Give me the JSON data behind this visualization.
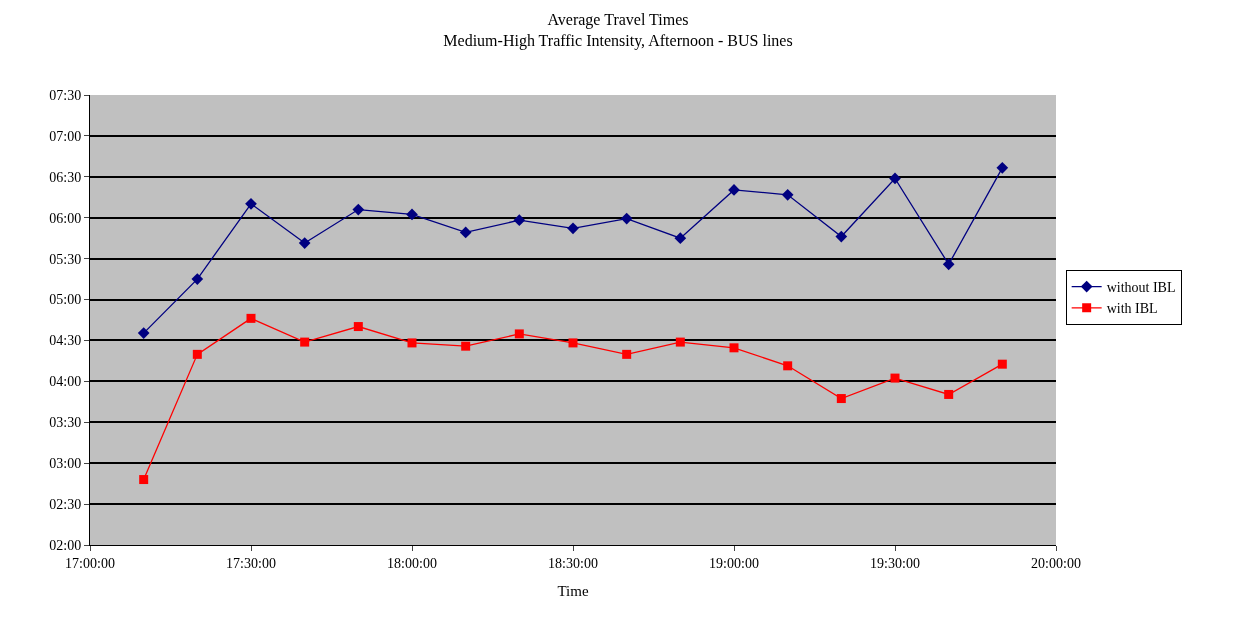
{
  "chart_data": {
    "type": "line",
    "title": "Average Travel Times",
    "subtitle": "Medium-High Traffic Intensity, Afternoon - BUS lines",
    "xlabel": "Time",
    "x": [
      17.1667,
      17.3333,
      17.5,
      17.6667,
      17.8333,
      18.0,
      18.1667,
      18.3333,
      18.5,
      18.6667,
      18.8333,
      19.0,
      19.1667,
      19.3333,
      19.5,
      19.6667,
      19.8333
    ],
    "series": [
      {
        "name": "without IBL",
        "color": "#000080",
        "marker": "diamond",
        "values": [
          4.59,
          5.25,
          6.17,
          5.69,
          6.1,
          6.04,
          5.82,
          5.97,
          5.87,
          5.99,
          5.75,
          6.34,
          6.28,
          5.77,
          6.48,
          5.43,
          6.61
        ]
      },
      {
        "name": "with IBL",
        "color": "#ff0000",
        "marker": "square",
        "values": [
          2.8,
          4.33,
          4.77,
          4.48,
          4.67,
          4.47,
          4.43,
          4.58,
          4.47,
          4.33,
          4.48,
          4.41,
          4.19,
          3.79,
          4.04,
          3.84,
          4.21
        ]
      }
    ],
    "xlim": [
      17.0,
      20.0
    ],
    "xticks": [
      {
        "value": 17.0,
        "label": "17:00:00"
      },
      {
        "value": 17.5,
        "label": "17:30:00"
      },
      {
        "value": 18.0,
        "label": "18:00:00"
      },
      {
        "value": 18.5,
        "label": "18:30:00"
      },
      {
        "value": 19.0,
        "label": "19:00:00"
      },
      {
        "value": 19.5,
        "label": "19:30:00"
      },
      {
        "value": 20.0,
        "label": "20:00:00"
      }
    ],
    "ylim": [
      2.0,
      7.5
    ],
    "yticks": [
      {
        "value": 2.0,
        "label": "02:00"
      },
      {
        "value": 2.5,
        "label": "02:30"
      },
      {
        "value": 3.0,
        "label": "03:00"
      },
      {
        "value": 3.5,
        "label": "03:30"
      },
      {
        "value": 4.0,
        "label": "04:00"
      },
      {
        "value": 4.5,
        "label": "04:30"
      },
      {
        "value": 5.0,
        "label": "05:00"
      },
      {
        "value": 5.5,
        "label": "05:30"
      },
      {
        "value": 6.0,
        "label": "06:00"
      },
      {
        "value": 6.5,
        "label": "06:30"
      },
      {
        "value": 7.0,
        "label": "07:00"
      },
      {
        "value": 7.5,
        "label": "07:30"
      }
    ],
    "grid": "y",
    "legend": "right",
    "line_style": "solid"
  }
}
